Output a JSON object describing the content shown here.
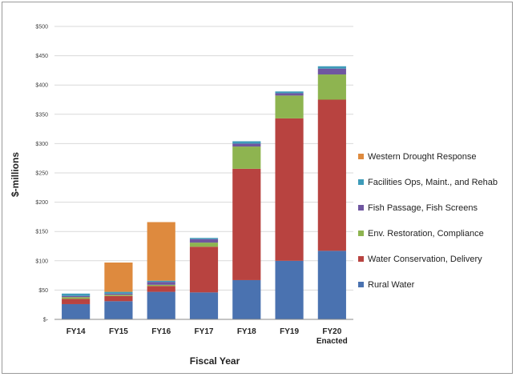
{
  "chart_data": {
    "type": "bar",
    "stacked": true,
    "xlabel": "Fiscal Year",
    "ylabel": "$-millions",
    "ylim": [
      0,
      500
    ],
    "yticks": [
      0,
      50,
      100,
      150,
      200,
      250,
      300,
      350,
      400,
      450,
      500
    ],
    "ytick_labels": [
      "$-",
      "$50",
      "$100",
      "$150",
      "$200",
      "$250",
      "$300",
      "$350",
      "$400",
      "$450",
      "$500"
    ],
    "categories": [
      [
        "FY14"
      ],
      [
        "FY15"
      ],
      [
        "FY16"
      ],
      [
        "FY17"
      ],
      [
        "FY18"
      ],
      [
        "FY19"
      ],
      [
        "FY20",
        "Enacted"
      ]
    ],
    "grid": true,
    "legend_position": "right",
    "series": [
      {
        "name": "Rural Water",
        "color": "#4a72b0",
        "values": [
          26,
          31,
          47,
          46,
          67,
          100,
          117
        ]
      },
      {
        "name": "Water Conservation, Delivery",
        "color": "#b84340",
        "values": [
          9,
          9,
          10,
          78,
          190,
          243,
          258
        ]
      },
      {
        "name": "Env. Restoration, Compliance",
        "color": "#8eb450",
        "values": [
          3,
          2,
          2,
          7,
          38,
          39,
          43
        ]
      },
      {
        "name": "Fish Passage, Fish Screens",
        "color": "#6f56a0",
        "values": [
          2,
          2,
          5,
          6,
          5,
          4,
          10
        ]
      },
      {
        "name": "Facilities Ops, Maint., and Rehab",
        "color": "#3e9bb9",
        "values": [
          4,
          3,
          2,
          2,
          4,
          3,
          4
        ]
      },
      {
        "name": "Western Drought Response",
        "color": "#de8a3e",
        "values": [
          0,
          50,
          100,
          0,
          0,
          0,
          0
        ]
      }
    ]
  }
}
